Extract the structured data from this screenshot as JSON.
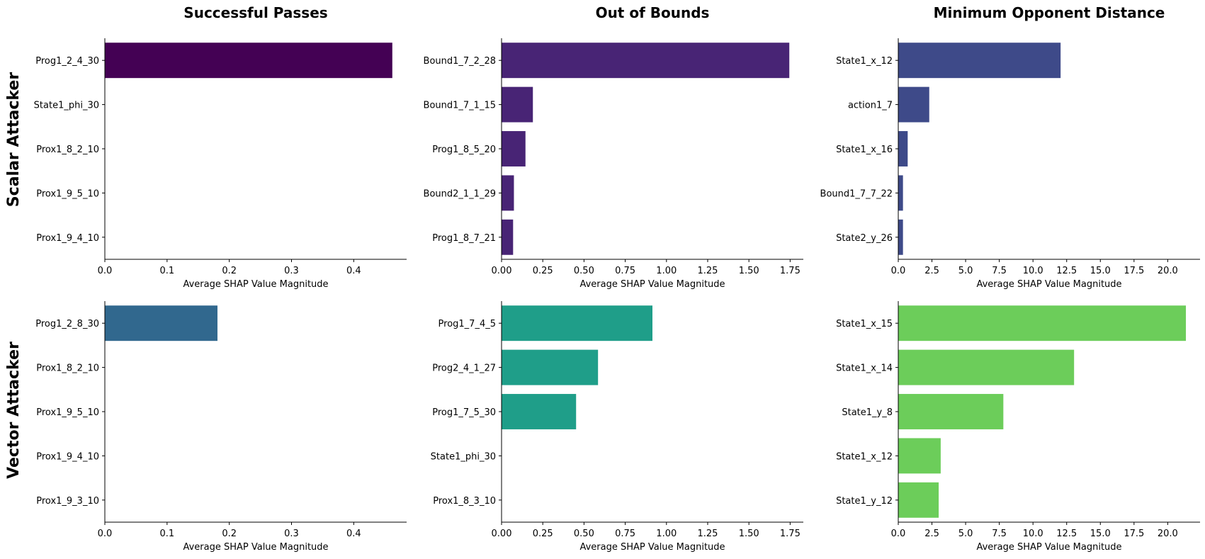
{
  "column_titles": [
    "Successful Passes",
    "Out of Bounds",
    "Minimum Opponent Distance"
  ],
  "row_labels": [
    "Scalar Attacker",
    "Vector Attacker"
  ],
  "chart_data": [
    {
      "type": "bar",
      "orientation": "horizontal",
      "column_title": "Successful Passes",
      "row_label": "Scalar Attacker",
      "xlabel": "Average SHAP Value Magnitude",
      "categories": [
        "Prog1_2_4_30",
        "State1_phi_30",
        "Prox1_8_2_10",
        "Prox1_9_5_10",
        "Prox1_9_4_10"
      ],
      "values": [
        0.462,
        0,
        0,
        0,
        0
      ],
      "xlim": [
        0,
        0.485
      ],
      "xticks": [
        0,
        0.1,
        0.2,
        0.3,
        0.4
      ],
      "xtick_labels": [
        "0.0",
        "0.1",
        "0.2",
        "0.3",
        "0.4"
      ],
      "color": "#440154"
    },
    {
      "type": "bar",
      "orientation": "horizontal",
      "column_title": "Out of Bounds",
      "row_label": "Scalar Attacker",
      "xlabel": "Average SHAP Value Magnitude",
      "categories": [
        "Bound1_7_2_28",
        "Bound1_7_1_15",
        "Prog1_8_5_20",
        "Bound2_1_1_29",
        "Prog1_8_7_21"
      ],
      "values": [
        1.745,
        0.19,
        0.145,
        0.075,
        0.07
      ],
      "xlim": [
        0,
        1.83
      ],
      "xticks": [
        0,
        0.25,
        0.5,
        0.75,
        1.0,
        1.25,
        1.5,
        1.75
      ],
      "xtick_labels": [
        "0.00",
        "0.25",
        "0.50",
        "0.75",
        "1.00",
        "1.25",
        "1.50",
        "1.75"
      ],
      "color": "#482475"
    },
    {
      "type": "bar",
      "orientation": "horizontal",
      "column_title": "Minimum Opponent Distance",
      "row_label": "Scalar Attacker",
      "xlabel": "Average SHAP Value Magnitude",
      "categories": [
        "State1_x_12",
        "action1_7",
        "State1_x_16",
        "Bound1_7_7_22",
        "State2_y_26"
      ],
      "values": [
        12.05,
        2.3,
        0.7,
        0.35,
        0.35
      ],
      "xlim": [
        0,
        22.4
      ],
      "xticks": [
        0,
        2.5,
        5,
        7.5,
        10,
        12.5,
        15,
        17.5,
        20
      ],
      "xtick_labels": [
        "0.0",
        "2.5",
        "5.0",
        "7.5",
        "10.0",
        "12.5",
        "15.0",
        "17.5",
        "20.0"
      ],
      "color": "#3e4a89"
    },
    {
      "type": "bar",
      "orientation": "horizontal",
      "column_title": "Successful Passes",
      "row_label": "Vector Attacker",
      "xlabel": "Average SHAP Value Magnitude",
      "categories": [
        "Prog1_2_8_30",
        "Prox1_8_2_10",
        "Prox1_9_5_10",
        "Prox1_9_4_10",
        "Prox1_9_3_10"
      ],
      "values": [
        0.181,
        0,
        0,
        0,
        0
      ],
      "xlim": [
        0,
        0.485
      ],
      "xticks": [
        0,
        0.1,
        0.2,
        0.3,
        0.4
      ],
      "xtick_labels": [
        "0.0",
        "0.1",
        "0.2",
        "0.3",
        "0.4"
      ],
      "color": "#31688e"
    },
    {
      "type": "bar",
      "orientation": "horizontal",
      "column_title": "Out of Bounds",
      "row_label": "Vector Attacker",
      "xlabel": "Average SHAP Value Magnitude",
      "categories": [
        "Prog1_7_4_5",
        "Prog2_4_1_27",
        "Prog1_7_5_30",
        "State1_phi_30",
        "Prox1_8_3_10"
      ],
      "values": [
        0.915,
        0.585,
        0.452,
        0,
        0
      ],
      "xlim": [
        0,
        1.83
      ],
      "xticks": [
        0,
        0.25,
        0.5,
        0.75,
        1.0,
        1.25,
        1.5,
        1.75
      ],
      "xtick_labels": [
        "0.00",
        "0.25",
        "0.50",
        "0.75",
        "1.00",
        "1.25",
        "1.50",
        "1.75"
      ],
      "color": "#1f9e89"
    },
    {
      "type": "bar",
      "orientation": "horizontal",
      "column_title": "Minimum Opponent Distance",
      "row_label": "Vector Attacker",
      "xlabel": "Average SHAP Value Magnitude",
      "categories": [
        "State1_x_15",
        "State1_x_14",
        "State1_y_8",
        "State1_x_12",
        "State1_y_12"
      ],
      "values": [
        21.35,
        13.05,
        7.8,
        3.15,
        3.0
      ],
      "xlim": [
        0,
        22.4
      ],
      "xticks": [
        0,
        2.5,
        5,
        7.5,
        10,
        12.5,
        15,
        17.5,
        20
      ],
      "xtick_labels": [
        "0.0",
        "2.5",
        "5.0",
        "7.5",
        "10.0",
        "12.5",
        "15.0",
        "17.5",
        "20.0"
      ],
      "color": "#6ccd5a"
    }
  ]
}
